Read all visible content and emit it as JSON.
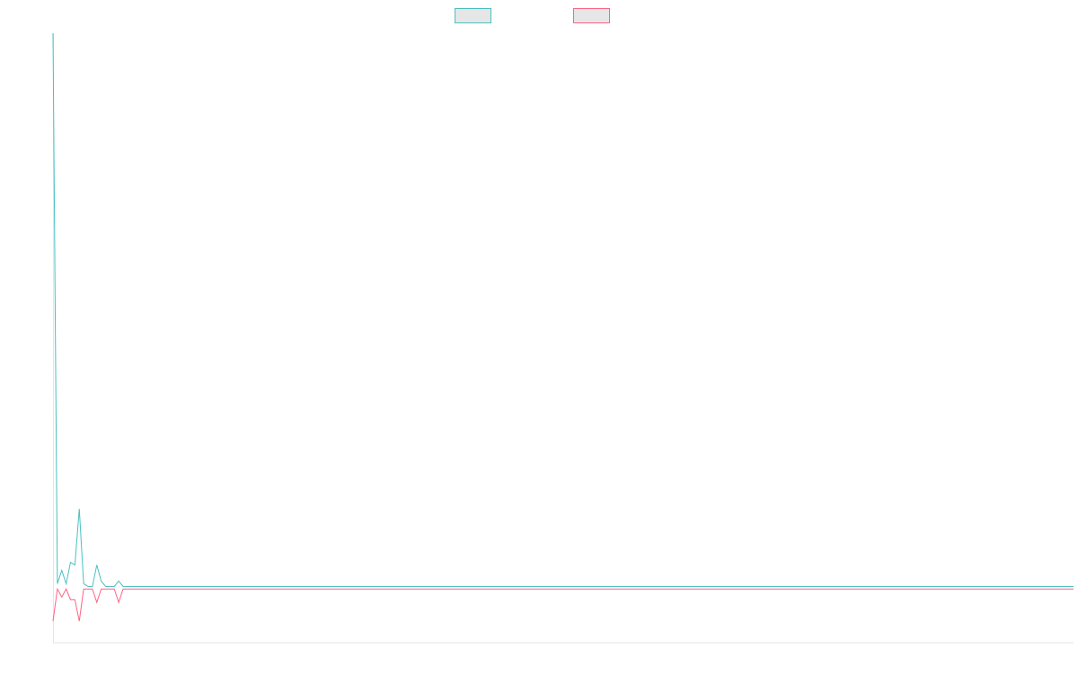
{
  "chart_data": {
    "type": "line",
    "x_count": 234,
    "ylim": [
      -1,
      10.4
    ],
    "grid": false,
    "legend": {
      "position": "top-center"
    },
    "series": [
      {
        "color": "#4bc0c0",
        "legend_fill": "#e6e6e6",
        "values": [
          10.4,
          0.1,
          0.35,
          0.1,
          0.5,
          0.45,
          1.5,
          0.1,
          0.05,
          0.05,
          0.45,
          0.15,
          0.05,
          0.05,
          0.05,
          0.15,
          0.05,
          0.05,
          0.05,
          0.05,
          0.05,
          0.05,
          0.05,
          0.05,
          0.05,
          0.05,
          0.05,
          0.05,
          0.05,
          0.05,
          0.05,
          0.05,
          0.05,
          0.05,
          0.05,
          0.05,
          0.05,
          0.05,
          0.05,
          0.05,
          0.05,
          0.05,
          0.05,
          0.05,
          0.05,
          0.05,
          0.05,
          0.05,
          0.05,
          0.05,
          0.05,
          0.05,
          0.05,
          0.05,
          0.05,
          0.05,
          0.05,
          0.05,
          0.05,
          0.05,
          0.05,
          0.05,
          0.05,
          0.05,
          0.05,
          0.05,
          0.05,
          0.05,
          0.05,
          0.05,
          0.05,
          0.05,
          0.05,
          0.05,
          0.05,
          0.05,
          0.05,
          0.05,
          0.05,
          0.05,
          0.05,
          0.05,
          0.05,
          0.05,
          0.05,
          0.05,
          0.05,
          0.05,
          0.05,
          0.05,
          0.05,
          0.05,
          0.05,
          0.05,
          0.05,
          0.05,
          0.05,
          0.05,
          0.05,
          0.05,
          0.05,
          0.05,
          0.05,
          0.05,
          0.05,
          0.05,
          0.05,
          0.05,
          0.05,
          0.05,
          0.05,
          0.05,
          0.05,
          0.05,
          0.05,
          0.05,
          0.05,
          0.05,
          0.05,
          0.05,
          0.05,
          0.05,
          0.05,
          0.05,
          0.05,
          0.05,
          0.05,
          0.05,
          0.05,
          0.05,
          0.05,
          0.05,
          0.05,
          0.05,
          0.05,
          0.05,
          0.05,
          0.05,
          0.05,
          0.05,
          0.05,
          0.05,
          0.05,
          0.05,
          0.05,
          0.05,
          0.05,
          0.05,
          0.05,
          0.05,
          0.05,
          0.05,
          0.05,
          0.05,
          0.05,
          0.05,
          0.05,
          0.05,
          0.05,
          0.05,
          0.05,
          0.05,
          0.05,
          0.05,
          0.05,
          0.05,
          0.05,
          0.05,
          0.05,
          0.05,
          0.05,
          0.05,
          0.05,
          0.05,
          0.05,
          0.05,
          0.05,
          0.05,
          0.05,
          0.05,
          0.05,
          0.05,
          0.05,
          0.05,
          0.05,
          0.05,
          0.05,
          0.05,
          0.05,
          0.05,
          0.05,
          0.05,
          0.05,
          0.05,
          0.05,
          0.05,
          0.05,
          0.05,
          0.05,
          0.05,
          0.05,
          0.05,
          0.05,
          0.05,
          0.05,
          0.05,
          0.05,
          0.05,
          0.05,
          0.05,
          0.05,
          0.05,
          0.05,
          0.05,
          0.05,
          0.05,
          0.05,
          0.05,
          0.05,
          0.05,
          0.05,
          0.05,
          0.05,
          0.05,
          0.05,
          0.05,
          0.05,
          0.05,
          0.05,
          0.05,
          0.05,
          0.05,
          0.05,
          0.05,
          0.05,
          0.05,
          0.05,
          0.05,
          0.05
        ]
      },
      {
        "color": "#ff6384",
        "legend_fill": "#e6e6e6",
        "values": [
          -0.6,
          0.0,
          -0.15,
          0.0,
          -0.2,
          -0.2,
          -0.6,
          0.0,
          0.0,
          0.0,
          -0.25,
          0.0,
          0.0,
          0.0,
          0.0,
          -0.25,
          0.0,
          0.0,
          0.0,
          0.0,
          0.0,
          0.0,
          0.0,
          0.0,
          0.0,
          0.0,
          0.0,
          0.0,
          0.0,
          0.0,
          0.0,
          0.0,
          0.0,
          0.0,
          0.0,
          0.0,
          0.0,
          0.0,
          0.0,
          0.0,
          0.0,
          0.0,
          0.0,
          0.0,
          0.0,
          0.0,
          0.0,
          0.0,
          0.0,
          0.0,
          0.0,
          0.0,
          0.0,
          0.0,
          0.0,
          0.0,
          0.0,
          0.0,
          0.0,
          0.0,
          0.0,
          0.0,
          0.0,
          0.0,
          0.0,
          0.0,
          0.0,
          0.0,
          0.0,
          0.0,
          0.0,
          0.0,
          0.0,
          0.0,
          0.0,
          0.0,
          0.0,
          0.0,
          0.0,
          0.0,
          0.0,
          0.0,
          0.0,
          0.0,
          0.0,
          0.0,
          0.0,
          0.0,
          0.0,
          0.0,
          0.0,
          0.0,
          0.0,
          0.0,
          0.0,
          0.0,
          0.0,
          0.0,
          0.0,
          0.0,
          0.0,
          0.0,
          0.0,
          0.0,
          0.0,
          0.0,
          0.0,
          0.0,
          0.0,
          0.0,
          0.0,
          0.0,
          0.0,
          0.0,
          0.0,
          0.0,
          0.0,
          0.0,
          0.0,
          0.0,
          0.0,
          0.0,
          0.0,
          0.0,
          0.0,
          0.0,
          0.0,
          0.0,
          0.0,
          0.0,
          0.0,
          0.0,
          0.0,
          0.0,
          0.0,
          0.0,
          0.0,
          0.0,
          0.0,
          0.0,
          0.0,
          0.0,
          0.0,
          0.0,
          0.0,
          0.0,
          0.0,
          0.0,
          0.0,
          0.0,
          0.0,
          0.0,
          0.0,
          0.0,
          0.0,
          0.0,
          0.0,
          0.0,
          0.0,
          0.0,
          0.0,
          0.0,
          0.0,
          0.0,
          0.0,
          0.0,
          0.0,
          0.0,
          0.0,
          0.0,
          0.0,
          0.0,
          0.0,
          0.0,
          0.0,
          0.0,
          0.0,
          0.0,
          0.0,
          0.0,
          0.0,
          0.0,
          0.0,
          0.0,
          0.0,
          0.0,
          0.0,
          0.0,
          0.0,
          0.0,
          0.0,
          0.0,
          0.0,
          0.0,
          0.0,
          0.0,
          0.0,
          0.0,
          0.0,
          0.0,
          0.0,
          0.0,
          0.0,
          0.0,
          0.0,
          0.0,
          0.0,
          0.0,
          0.0,
          0.0,
          0.0,
          0.0,
          0.0,
          0.0,
          0.0,
          0.0,
          0.0,
          0.0,
          0.0,
          0.0,
          0.0,
          0.0,
          0.0,
          0.0,
          0.0,
          0.0,
          0.0,
          0.0,
          0.0,
          0.0,
          0.0,
          0.0,
          0.0,
          0.0,
          0.0,
          0.0,
          0.0,
          0.0
        ]
      }
    ]
  }
}
